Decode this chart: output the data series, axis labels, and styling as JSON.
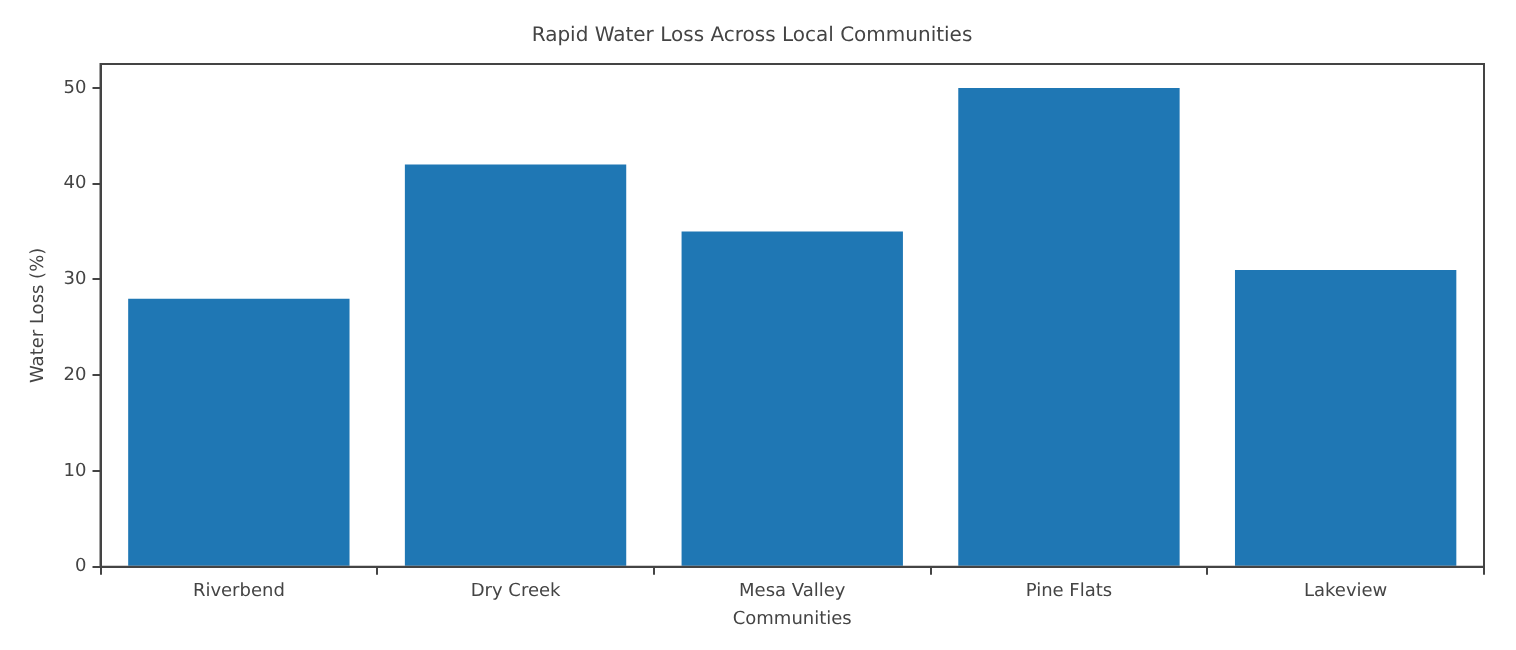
{
  "chart_data": {
    "type": "bar",
    "title": "Rapid Water Loss Across Local Communities",
    "xlabel": "Communities",
    "ylabel": "Water Loss (%)",
    "categories": [
      "Riverbend",
      "Dry Creek",
      "Mesa Valley",
      "Pine Flats",
      "Lakeview"
    ],
    "values": [
      28,
      42,
      35,
      50,
      31
    ],
    "color": "#1f77b4",
    "ylim": [
      0,
      52.5
    ],
    "yticks": [
      0,
      10,
      20,
      30,
      40,
      50
    ],
    "grid": false,
    "legend": false
  }
}
